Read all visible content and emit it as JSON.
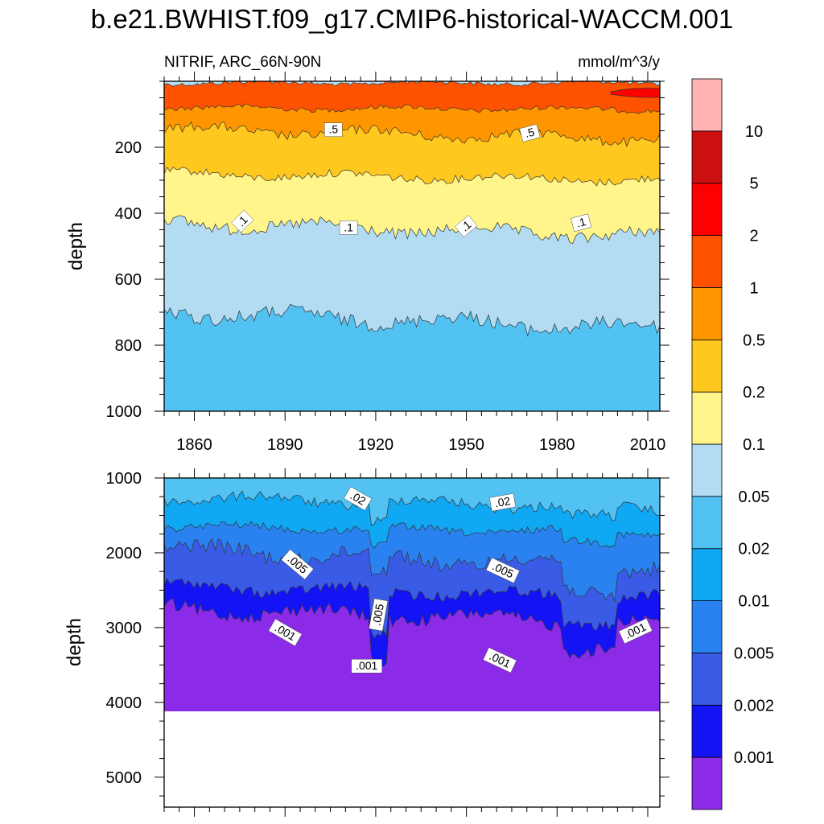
{
  "title": "b.e21.BWHIST.f09_g17.CMIP6-historical-WACCM.001",
  "colors": {
    "levels": [
      "#8b2be7",
      "#1313f5",
      "#3a5be6",
      "#2a82f0",
      "#10a8f2",
      "#52c2f2",
      "#b3dcf2",
      "#fff58a",
      "#ffc81e",
      "#ff9600",
      "#ff5200",
      "#ff0000",
      "#cc1010",
      "#ffb3b3"
    ],
    "line": "#333333",
    "missing": "#ffffff"
  },
  "chart_data": [
    {
      "type": "contour",
      "panel": "upper",
      "variable": "NITRIF",
      "region": "ARC_66N-90N",
      "left_label": "NITRIF, ARC_66N-90N",
      "units": "mmol/m^3/y",
      "ylabel": "depth",
      "xlabel": "",
      "xlim": [
        1850,
        2014
      ],
      "ylim": [
        1000,
        0
      ],
      "y_ticks": [
        "200",
        "400",
        "600",
        "800",
        "1000"
      ],
      "y_tick_values": [
        200,
        400,
        600,
        800,
        1000
      ],
      "x_ticks": [
        "1860",
        "1890",
        "1920",
        "1950",
        "1980",
        "2010"
      ],
      "x_tick_values": [
        1860,
        1890,
        1920,
        1950,
        1980,
        2010
      ],
      "bands": [
        {
          "level": 10,
          "color_index": 6,
          "depth": [
            0,
            0
          ]
        },
        {
          "level": 1,
          "color_index": 10,
          "depth": [
            5,
            5
          ]
        },
        {
          "level": 0.5,
          "color_index": 9,
          "depth": [
            80,
            85
          ]
        },
        {
          "level": 0.2,
          "color_index": 8,
          "depth": [
            145,
            175
          ]
        },
        {
          "level": 0.1,
          "color_index": 7,
          "depth": [
            280,
            300
          ]
        },
        {
          "level": 0.05,
          "color_index": 6,
          "depth": [
            430,
            470
          ]
        },
        {
          "level": 0.02,
          "color_index": 5,
          "depth": [
            700,
            750
          ]
        }
      ],
      "contour_labels": [
        {
          "text": ".5",
          "x": 1906,
          "y": 148,
          "angle": 0
        },
        {
          "text": ".5",
          "x": 1971,
          "y": 158,
          "angle": -15
        },
        {
          "text": ".1",
          "x": 1876,
          "y": 425,
          "angle": -45
        },
        {
          "text": ".1",
          "x": 1911,
          "y": 445,
          "angle": 0
        },
        {
          "text": ".1",
          "x": 1950,
          "y": 440,
          "angle": -40
        },
        {
          "text": ".1",
          "x": 1988,
          "y": 430,
          "angle": -15
        }
      ]
    },
    {
      "type": "contour",
      "panel": "lower",
      "ylabel": "depth",
      "xlim": [
        1850,
        2014
      ],
      "ylim": [
        5400,
        1000
      ],
      "y_ticks": [
        "1000",
        "2000",
        "3000",
        "4000",
        "5000"
      ],
      "y_tick_values": [
        1000,
        2000,
        3000,
        4000,
        5000
      ],
      "data_max_depth": 4120,
      "bands": [
        {
          "level": 0.05,
          "color_index": 5,
          "depth": [
            1000,
            1000
          ]
        },
        {
          "level": 0.02,
          "color_index": 4,
          "depth": [
            1260,
            1400
          ]
        },
        {
          "level": 0.01,
          "color_index": 3,
          "depth": [
            1650,
            1730
          ]
        },
        {
          "level": 0.005,
          "color_index": 2,
          "depth": [
            1950,
            2200
          ]
        },
        {
          "level": 0.002,
          "color_index": 1,
          "depth": [
            2450,
            2600
          ]
        },
        {
          "level": 0.001,
          "color_index": 0,
          "depth": [
            2750,
            2950
          ]
        }
      ],
      "contour_labels": [
        {
          "text": ".02",
          "x": 1914,
          "y": 1280,
          "angle": 30
        },
        {
          "text": ".02",
          "x": 1962,
          "y": 1330,
          "angle": -10
        },
        {
          "text": ".005",
          "x": 1894,
          "y": 2160,
          "angle": 40
        },
        {
          "text": ".005",
          "x": 1962,
          "y": 2240,
          "angle": 25
        },
        {
          "text": ".005",
          "x": 1921,
          "y": 2830,
          "angle": -80
        },
        {
          "text": ".001",
          "x": 1890,
          "y": 3070,
          "angle": 30
        },
        {
          "text": ".001",
          "x": 1917,
          "y": 3520,
          "angle": 0
        },
        {
          "text": ".001",
          "x": 1961,
          "y": 3440,
          "angle": 25
        },
        {
          "text": ".001",
          "x": 2006,
          "y": 3050,
          "angle": -25
        }
      ]
    },
    {
      "type": "colorbar",
      "labels": [
        "0.001",
        "0.002",
        "0.005",
        "0.01",
        "0.02",
        "0.05",
        "0.1",
        "0.2",
        "0.5",
        "1",
        "2",
        "5",
        "10"
      ]
    }
  ]
}
